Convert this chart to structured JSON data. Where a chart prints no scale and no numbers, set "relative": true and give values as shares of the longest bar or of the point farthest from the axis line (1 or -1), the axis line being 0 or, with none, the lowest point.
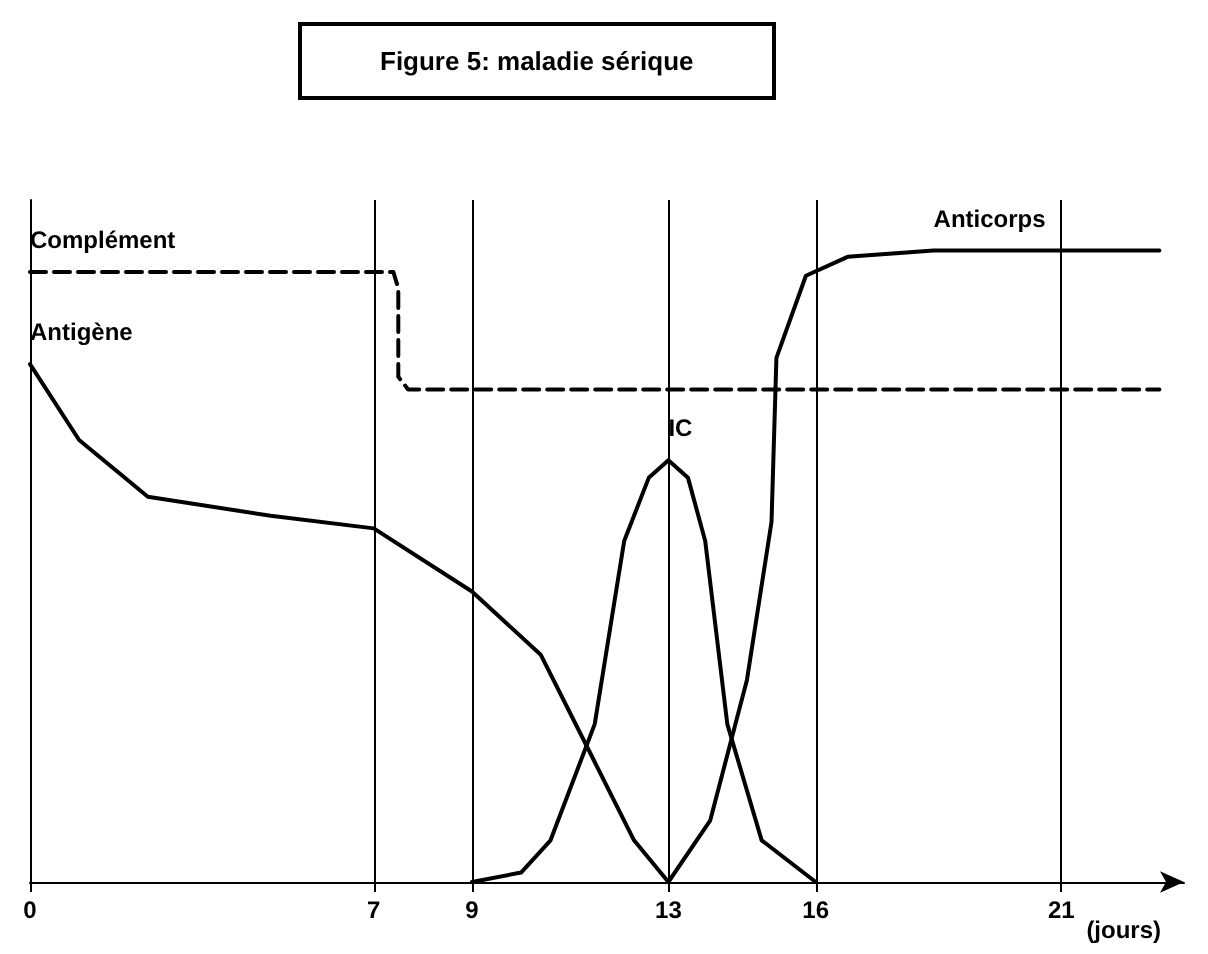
{
  "chart_data": {
    "type": "line",
    "title": "Figure 5: maladie sérique",
    "xlabel": "(jours)",
    "relative": true,
    "xlim": [
      0,
      23.5
    ],
    "xticks": [
      0,
      7,
      9,
      13,
      16,
      21
    ],
    "grid": false,
    "legend": false,
    "marker": "none",
    "series": [
      {
        "name": "Complément",
        "color": "#000000",
        "line_style": "dashed",
        "x": [
          0,
          7.4,
          7.5,
          7.5,
          7.7,
          23
        ],
        "values": [
          0.966,
          0.966,
          0.94,
          0.8,
          0.78,
          0.78
        ]
      },
      {
        "name": "Antigène",
        "color": "#000000",
        "line_style": "solid",
        "x": [
          0,
          1,
          2.4,
          4.9,
          7,
          9,
          10.4,
          11.5,
          12.3,
          13
        ],
        "values": [
          0.82,
          0.7,
          0.61,
          0.58,
          0.56,
          0.46,
          0.36,
          0.19,
          0.066,
          0
        ]
      },
      {
        "name": "IC",
        "color": "#000000",
        "line_style": "solid",
        "x": [
          9,
          10,
          10.6,
          11.5,
          12.1,
          12.6,
          13,
          13.4,
          13.75,
          14.2,
          14.9,
          16
        ],
        "values": [
          0,
          0.015,
          0.066,
          0.25,
          0.54,
          0.64,
          0.668,
          0.64,
          0.54,
          0.25,
          0.066,
          0
        ]
      },
      {
        "name": "Anticorps",
        "color": "#000000",
        "line_style": "solid",
        "x": [
          13,
          13.85,
          14.6,
          15.1,
          15.2,
          15.8,
          16.65,
          18.4,
          23
        ],
        "values": [
          0,
          0.097,
          0.32,
          0.57,
          0.83,
          0.96,
          0.99,
          1,
          1
        ]
      }
    ],
    "ref_lines": [
      {
        "axis": "x",
        "value": 7
      },
      {
        "axis": "x",
        "value": 9
      },
      {
        "axis": "x",
        "value": 13
      },
      {
        "axis": "x",
        "value": 16
      },
      {
        "axis": "x",
        "value": 21
      }
    ]
  }
}
